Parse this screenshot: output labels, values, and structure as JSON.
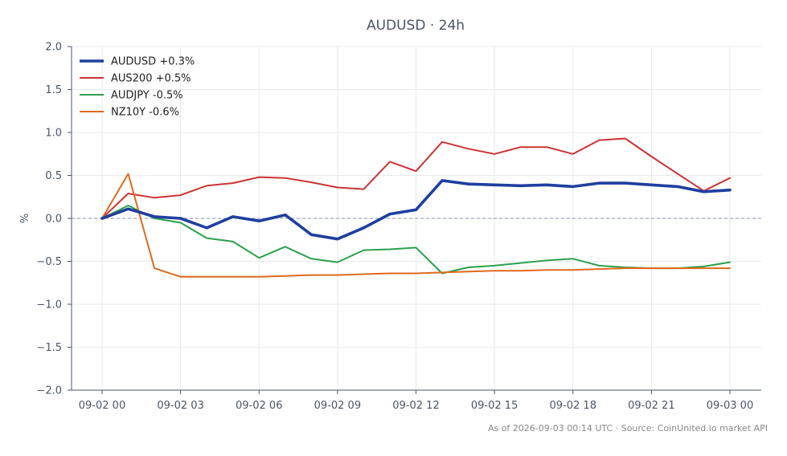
{
  "chart_data": {
    "type": "line",
    "title": "AUDUSD · 24h",
    "xlabel": "",
    "ylabel": "%",
    "ylim": [
      -2.0,
      2.0
    ],
    "yticks": [
      -2.0,
      -1.5,
      -1.0,
      -0.5,
      0.0,
      0.5,
      1.0,
      1.5,
      2.0
    ],
    "ytick_labels": [
      "−2.0",
      "−1.5",
      "−1.0",
      "−0.5",
      "0.0",
      "0.5",
      "1.0",
      "1.5",
      "2.0"
    ],
    "xlim": [
      0,
      24
    ],
    "xticks": [
      0,
      3,
      6,
      9,
      12,
      15,
      18,
      21,
      24
    ],
    "xtick_labels": [
      "09-02 00",
      "09-02 03",
      "09-02 06",
      "09-02 09",
      "09-02 12",
      "09-02 15",
      "09-02 18",
      "09-02 21",
      "09-03 00"
    ],
    "x": [
      0,
      1,
      2,
      3,
      4,
      5,
      6,
      7,
      8,
      9,
      10,
      11,
      12,
      13,
      14,
      15,
      16,
      17,
      18,
      19,
      20,
      21,
      22,
      23,
      24
    ],
    "grid": true,
    "zero_line": true,
    "legend_position": "top-left",
    "series": [
      {
        "name": "AUDUSD +0.3%",
        "color": "#1f3f9e",
        "emphasis": true,
        "values": [
          0.0,
          0.11,
          0.02,
          0.0,
          -0.11,
          0.02,
          -0.03,
          0.04,
          -0.19,
          -0.24,
          -0.11,
          0.05,
          0.1,
          0.44,
          0.4,
          0.39,
          0.38,
          0.39,
          0.37,
          0.41,
          0.41,
          0.39,
          0.37,
          0.31,
          0.33
        ]
      },
      {
        "name": "AUS200 +0.5%",
        "color": "#cc3333",
        "emphasis": false,
        "values": [
          0.0,
          0.29,
          0.24,
          0.27,
          0.38,
          0.41,
          0.48,
          0.47,
          0.42,
          0.36,
          0.34,
          0.66,
          0.55,
          0.89,
          0.81,
          0.75,
          0.83,
          0.83,
          0.75,
          0.91,
          0.93,
          0.72,
          0.52,
          0.32,
          0.47
        ]
      },
      {
        "name": "AUDJPY -0.5%",
        "color": "#2ca04c",
        "emphasis": false,
        "values": [
          0.0,
          0.15,
          0.0,
          -0.05,
          -0.23,
          -0.27,
          -0.46,
          -0.33,
          -0.47,
          -0.51,
          -0.37,
          -0.36,
          -0.34,
          -0.64,
          -0.57,
          -0.55,
          -0.52,
          -0.49,
          -0.47,
          -0.55,
          -0.57,
          -0.58,
          -0.58,
          -0.56,
          -0.51
        ]
      },
      {
        "name": "NZ10Y -0.6%",
        "color": "#e0691f",
        "emphasis": false,
        "values": [
          0.0,
          0.52,
          -0.58,
          -0.68,
          -0.68,
          -0.68,
          -0.68,
          -0.67,
          -0.66,
          -0.66,
          -0.65,
          -0.64,
          -0.64,
          -0.63,
          -0.62,
          -0.61,
          -0.61,
          -0.6,
          -0.6,
          -0.59,
          -0.58,
          -0.58,
          -0.58,
          -0.58,
          -0.58
        ]
      }
    ]
  },
  "footer": {
    "source_note": "As of 2026-09-03 00:14 UTC · Source: CoinUnited.io market API"
  },
  "colors": {
    "axis": "#4a5568",
    "grid": "#e8eaee",
    "zero_line": "#8a96b8",
    "title": "#4a5568",
    "footer": "#888888"
  }
}
